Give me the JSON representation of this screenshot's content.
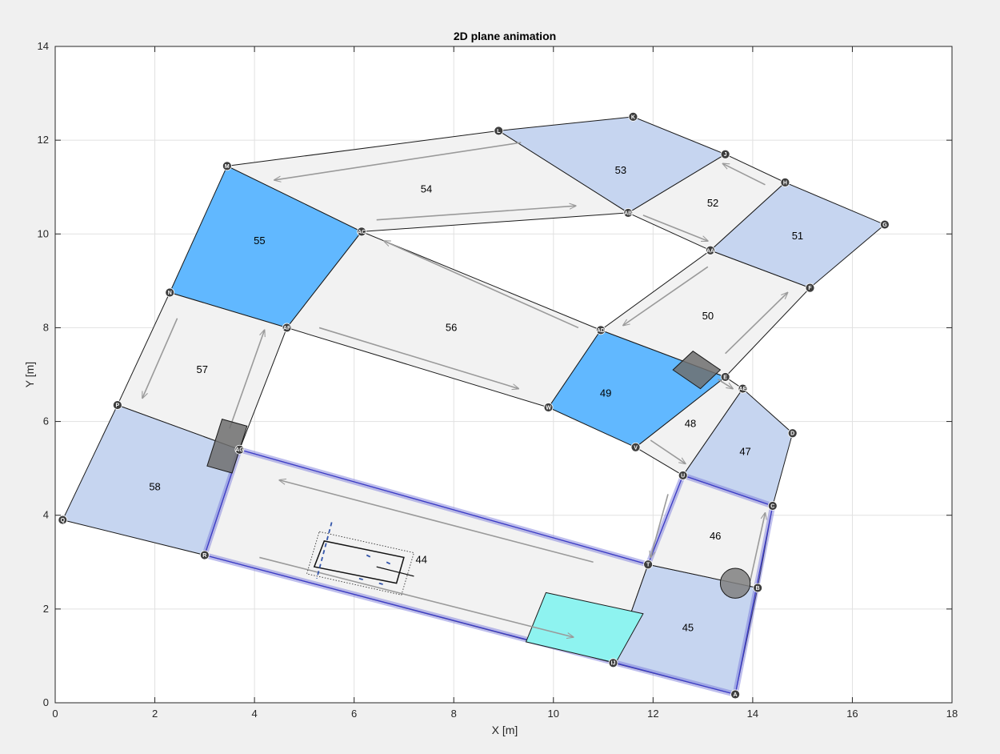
{
  "chart_data": {
    "type": "scatter",
    "title": "2D plane animation",
    "xlabel": "X [m]",
    "ylabel": "Y [m]",
    "xlim": [
      0,
      18
    ],
    "ylim": [
      0,
      14
    ],
    "xticks": [
      "0",
      "2",
      "4",
      "6",
      "8",
      "10",
      "12",
      "14",
      "16",
      "18"
    ],
    "yticks": [
      "0",
      "2",
      "4",
      "6",
      "8",
      "10",
      "12",
      "14"
    ],
    "grid": true,
    "colors": {
      "zone_light": "#c6d5f0",
      "zone_blue": "#61b8ff",
      "zone_grey": "#f2f2f2",
      "node": "#3d3d3d",
      "path": "#6e6ed8",
      "cyan": "#8ef3f0",
      "obstacle": "#808080"
    },
    "nodes": [
      {
        "id": "A",
        "x": 13.65,
        "y": 0.18
      },
      {
        "id": "B",
        "x": 14.1,
        "y": 2.45
      },
      {
        "id": "C",
        "x": 14.4,
        "y": 4.2
      },
      {
        "id": "D",
        "x": 14.8,
        "y": 5.75
      },
      {
        "id": "E",
        "x": 13.45,
        "y": 6.95
      },
      {
        "id": "F",
        "x": 15.15,
        "y": 8.85
      },
      {
        "id": "G",
        "x": 16.65,
        "y": 10.2
      },
      {
        "id": "H",
        "x": 14.65,
        "y": 11.1
      },
      {
        "id": "J",
        "x": 13.45,
        "y": 11.7
      },
      {
        "id": "K",
        "x": 11.6,
        "y": 12.5
      },
      {
        "id": "L",
        "x": 8.9,
        "y": 12.2
      },
      {
        "id": "M",
        "x": 3.45,
        "y": 11.45
      },
      {
        "id": "N",
        "x": 2.3,
        "y": 8.75
      },
      {
        "id": "P",
        "x": 1.25,
        "y": 6.35
      },
      {
        "id": "Q",
        "x": 0.15,
        "y": 3.9
      },
      {
        "id": "R",
        "x": 3.0,
        "y": 3.15
      },
      {
        "id": "T",
        "x": 11.9,
        "y": 2.95
      },
      {
        "id": "U",
        "x": 12.6,
        "y": 4.85
      },
      {
        "id": "V",
        "x": 11.65,
        "y": 5.45
      },
      {
        "id": "W",
        "x": 9.9,
        "y": 6.3
      },
      {
        "id": "AB",
        "x": 11.5,
        "y": 10.45
      },
      {
        "id": "AC",
        "x": 6.15,
        "y": 10.05
      },
      {
        "id": "AD",
        "x": 10.95,
        "y": 7.95
      },
      {
        "id": "AA",
        "x": 13.15,
        "y": 9.65
      },
      {
        "id": "AE",
        "x": 13.8,
        "y": 6.7
      },
      {
        "id": "AF",
        "x": 4.65,
        "y": 8.0
      },
      {
        "id": "AG",
        "x": 3.7,
        "y": 5.4
      },
      {
        "id": "IJ",
        "x": 11.2,
        "y": 0.85
      }
    ],
    "zones": [
      {
        "label": "44",
        "nodes": [
          "R",
          "AG",
          "T",
          "IJ"
        ],
        "color": "zone_grey",
        "label_pos": [
          7.35,
          3.05
        ]
      },
      {
        "label": "45",
        "nodes": [
          "IJ",
          "T",
          "B",
          "A"
        ],
        "color": "zone_light",
        "label_pos": [
          12.7,
          1.6
        ]
      },
      {
        "label": "46",
        "nodes": [
          "T",
          "U",
          "C",
          "B"
        ],
        "color": "zone_grey",
        "label_pos": [
          13.25,
          3.55
        ]
      },
      {
        "label": "47",
        "nodes": [
          "U",
          "AE",
          "D",
          "C"
        ],
        "color": "zone_light",
        "label_pos": [
          13.85,
          5.35
        ]
      },
      {
        "label": "48",
        "nodes": [
          "V",
          "E",
          "AE",
          "U"
        ],
        "color": "zone_grey",
        "label_pos": [
          12.75,
          5.95
        ]
      },
      {
        "label": "49",
        "nodes": [
          "W",
          "AD",
          "E",
          "V"
        ],
        "color": "zone_blue",
        "label_pos": [
          11.05,
          6.6
        ]
      },
      {
        "label": "50",
        "nodes": [
          "AD",
          "AA",
          "F",
          "E"
        ],
        "color": "zone_grey",
        "label_pos": [
          13.1,
          8.25
        ]
      },
      {
        "label": "51",
        "nodes": [
          "AA",
          "H",
          "G",
          "F"
        ],
        "color": "zone_light",
        "label_pos": [
          14.9,
          9.95
        ]
      },
      {
        "label": "52",
        "nodes": [
          "AB",
          "J",
          "H",
          "AA"
        ],
        "color": "zone_grey",
        "label_pos": [
          13.2,
          10.65
        ]
      },
      {
        "label": "53",
        "nodes": [
          "L",
          "K",
          "J",
          "AB"
        ],
        "color": "zone_light",
        "label_pos": [
          11.35,
          11.35
        ]
      },
      {
        "label": "54",
        "nodes": [
          "M",
          "L",
          "AB",
          "AC"
        ],
        "color": "zone_grey",
        "label_pos": [
          7.45,
          10.95
        ]
      },
      {
        "label": "55",
        "nodes": [
          "N",
          "M",
          "AC",
          "AF"
        ],
        "color": "zone_blue",
        "label_pos": [
          4.1,
          9.85
        ]
      },
      {
        "label": "56",
        "nodes": [
          "AF",
          "AC",
          "AD",
          "W"
        ],
        "color": "zone_grey",
        "label_pos": [
          7.95,
          8.0
        ]
      },
      {
        "label": "57",
        "nodes": [
          "P",
          "N",
          "AF",
          "AG"
        ],
        "color": "zone_grey",
        "label_pos": [
          2.95,
          7.1
        ]
      },
      {
        "label": "58",
        "nodes": [
          "Q",
          "P",
          "AG",
          "R"
        ],
        "color": "zone_light",
        "label_pos": [
          2.0,
          4.6
        ]
      }
    ],
    "highlighted_path": [
      "R",
      "AG",
      "T",
      "U",
      "C",
      "A",
      "R"
    ],
    "direction_arrows": [
      {
        "from": [
          9.35,
          11.95
        ],
        "to": [
          4.4,
          11.15
        ]
      },
      {
        "from": [
          6.45,
          10.3
        ],
        "to": [
          10.45,
          10.6
        ]
      },
      {
        "from": [
          11.8,
          10.4
        ],
        "to": [
          13.1,
          9.85
        ]
      },
      {
        "from": [
          14.25,
          11.05
        ],
        "to": [
          13.4,
          11.5
        ]
      },
      {
        "from": [
          10.5,
          8.0
        ],
        "to": [
          6.6,
          9.85
        ]
      },
      {
        "from": [
          5.3,
          8.0
        ],
        "to": [
          9.3,
          6.7
        ]
      },
      {
        "from": [
          13.1,
          9.3
        ],
        "to": [
          11.4,
          8.05
        ]
      },
      {
        "from": [
          13.45,
          7.45
        ],
        "to": [
          14.7,
          8.75
        ]
      },
      {
        "from": [
          2.45,
          8.2
        ],
        "to": [
          1.75,
          6.5
        ]
      },
      {
        "from": [
          3.5,
          5.85
        ],
        "to": [
          4.2,
          7.95
        ]
      },
      {
        "from": [
          10.8,
          3.0
        ],
        "to": [
          4.5,
          4.75
        ]
      },
      {
        "from": [
          4.1,
          3.1
        ],
        "to": [
          10.4,
          1.4
        ]
      },
      {
        "from": [
          12.3,
          4.45
        ],
        "to": [
          11.95,
          3.1
        ]
      },
      {
        "from": [
          13.95,
          2.6
        ],
        "to": [
          14.25,
          4.05
        ]
      },
      {
        "from": [
          11.95,
          5.6
        ],
        "to": [
          12.65,
          5.1
        ]
      },
      {
        "from": [
          13.3,
          6.9
        ],
        "to": [
          13.6,
          6.7
        ]
      }
    ],
    "cyan_zone": [
      [
        9.85,
        2.35
      ],
      [
        11.8,
        1.9
      ],
      [
        11.25,
        0.85
      ],
      [
        9.45,
        1.3
      ]
    ],
    "obstacles": [
      {
        "type": "rect",
        "points": [
          [
            12.8,
            7.5
          ],
          [
            13.35,
            7.1
          ],
          [
            12.95,
            6.7
          ],
          [
            12.4,
            7.1
          ]
        ]
      },
      {
        "type": "rect",
        "points": [
          [
            3.35,
            6.05
          ],
          [
            3.85,
            5.9
          ],
          [
            3.55,
            4.9
          ],
          [
            3.05,
            5.05
          ]
        ]
      },
      {
        "type": "circle",
        "cx": 13.65,
        "cy": 2.55,
        "r": 0.3
      }
    ],
    "vehicle": {
      "body": [
        [
          5.4,
          3.45
        ],
        [
          7.0,
          3.1
        ],
        [
          6.85,
          2.55
        ],
        [
          5.2,
          2.9
        ]
      ],
      "envelope": [
        [
          5.3,
          3.65
        ],
        [
          7.2,
          3.2
        ],
        [
          6.95,
          2.3
        ],
        [
          5.05,
          2.75
        ]
      ],
      "heading": [
        [
          6.45,
          2.9
        ],
        [
          7.2,
          2.7
        ]
      ],
      "marks": [
        [
          [
            5.55,
            3.85
          ],
          [
            5.25,
            2.65
          ]
        ],
        [
          [
            6.25,
            3.15
          ],
          [
            6.35,
            3.1
          ]
        ],
        [
          [
            6.65,
            3.0
          ],
          [
            6.75,
            2.95
          ]
        ],
        [
          [
            6.1,
            2.65
          ],
          [
            6.2,
            2.62
          ]
        ],
        [
          [
            6.5,
            2.55
          ],
          [
            6.6,
            2.52
          ]
        ]
      ]
    }
  }
}
